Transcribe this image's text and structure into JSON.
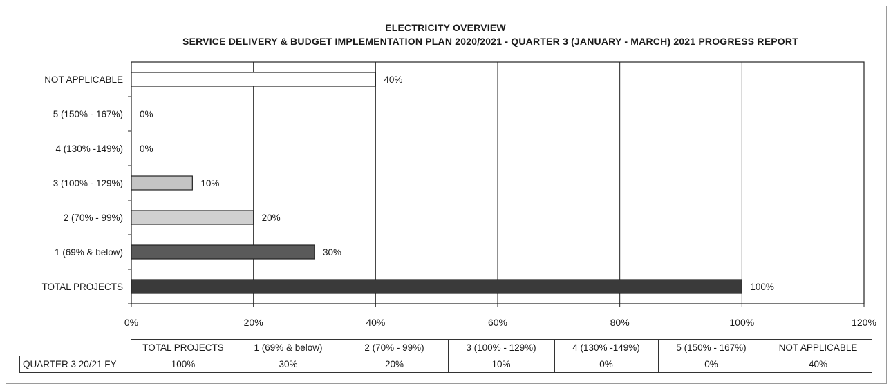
{
  "chart_data": {
    "type": "bar",
    "orientation": "horizontal",
    "title": "ELECTRICITY OVERVIEW",
    "subtitle": "SERVICE DELIVERY & BUDGET IMPLEMENTATION PLAN 2020/2021 - QUARTER 3 (JANUARY - MARCH) 2021 PROGRESS REPORT",
    "categories": [
      "TOTAL PROJECTS",
      "1 (69% & below)",
      "2 (70% - 99%)",
      "3 (100% - 129%)",
      "4 (130% -149%)",
      "5 (150% - 167%)",
      "NOT APPLICABLE"
    ],
    "series": [
      {
        "name": "QUARTER 3 20/21 FY",
        "values": [
          100,
          30,
          20,
          10,
          0,
          0,
          40
        ]
      }
    ],
    "data_labels": [
      "100%",
      "30%",
      "20%",
      "10%",
      "0%",
      "0%",
      "40%"
    ],
    "bar_colors": [
      "#3a3a3a",
      "#5a5a5a",
      "#d0d0d0",
      "#c4c4c4",
      "#c4c4c4",
      "#c4c4c4",
      "#ffffff"
    ],
    "xlim": [
      0,
      120
    ],
    "x_ticks": [
      "0%",
      "20%",
      "40%",
      "60%",
      "80%",
      "100%",
      "120%"
    ],
    "grid": true,
    "legend": "data table below chart"
  },
  "table": {
    "headers": [
      "TOTAL PROJECTS",
      "1 (69% & below)",
      "2 (70% - 99%)",
      "3 (100% - 129%)",
      "4 (130% -149%)",
      "5 (150% - 167%)",
      "NOT APPLICABLE"
    ],
    "row_label": "QUARTER 3 20/21 FY",
    "values": [
      "100%",
      "30%",
      "20%",
      "10%",
      "0%",
      "0%",
      "40%"
    ]
  }
}
